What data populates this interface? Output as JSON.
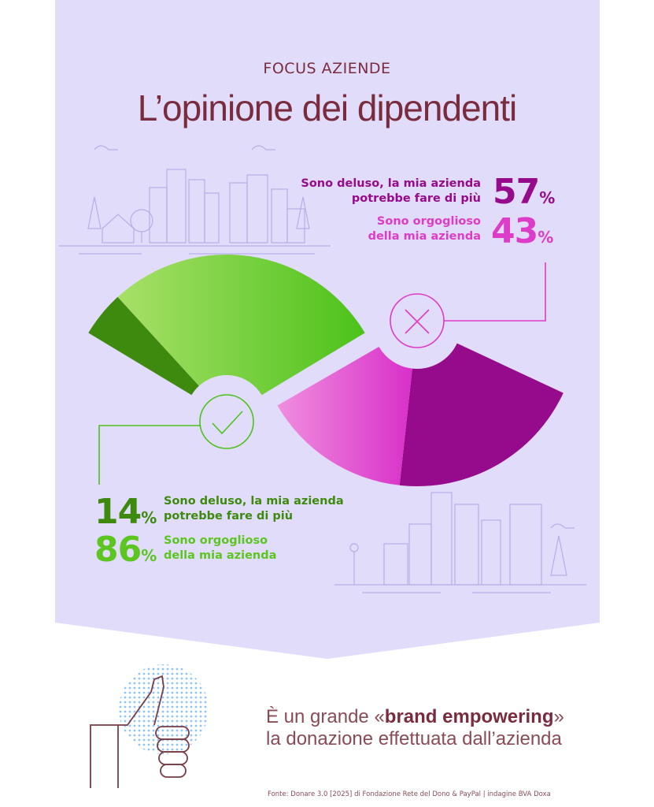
{
  "header": {
    "kicker": "FOCUS AZIENDE",
    "title": "L’opinione dei dipendenti"
  },
  "colors": {
    "background": "#e2dcfb",
    "title": "#7a2c3f",
    "green_dark": "#3e8a0e",
    "green_light": "#5cc520",
    "magenta_dark": "#960a8c",
    "magenta_light": "#dc3cc8",
    "line_art": "#b8aee6",
    "dots": "#8cc4f4"
  },
  "chart_data": [
    {
      "type": "pie",
      "variant": "fan",
      "icon": "check-icon",
      "slices": [
        {
          "label_line1": "Sono deluso, la mia azienda",
          "label_line2": "potrebbe fare di più",
          "value": 14,
          "display": "14",
          "unit": "%",
          "color": "#3e8a0e"
        },
        {
          "label_line1": "Sono orgoglioso",
          "label_line2": "della mia azienda",
          "value": 86,
          "display": "86",
          "unit": "%",
          "color": "#5cc520"
        }
      ]
    },
    {
      "type": "pie",
      "variant": "fan",
      "icon": "x-icon",
      "slices": [
        {
          "label_line1": "Sono deluso, la mia azienda",
          "label_line2": "potrebbe fare di più",
          "value": 57,
          "display": "57",
          "unit": "%",
          "color": "#960a8c"
        },
        {
          "label_line1": "Sono orgoglioso",
          "label_line2": "della mia azienda",
          "value": 43,
          "display": "43",
          "unit": "%",
          "color": "#dc3cc8"
        }
      ]
    }
  ],
  "claim": {
    "pre": "È un grande ",
    "open": "«",
    "bold": "brand empowering",
    "close": "»",
    "line2": "la donazione effettuata dall’azienda"
  },
  "source": "Fonte: Donare 3.0 [2025] di Fondazione Rete del Dono & PayPal | indagine BVA Doxa"
}
